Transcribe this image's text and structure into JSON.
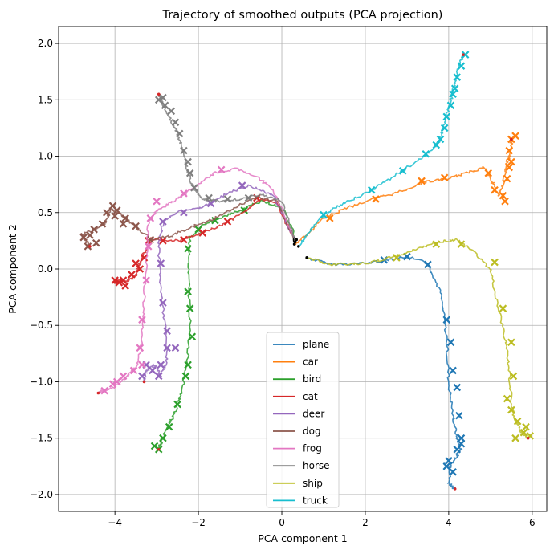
{
  "chart_data": {
    "type": "line",
    "title": "Trajectory of smoothed outputs (PCA projection)",
    "xlabel": "PCA component 1",
    "ylabel": "PCA component 2",
    "xlim": [
      -5.35,
      6.35
    ],
    "ylim": [
      -2.15,
      2.15
    ],
    "xticks": [
      -4,
      -2,
      0,
      2,
      4,
      6
    ],
    "yticks": [
      -2.0,
      -1.5,
      -1.0,
      -0.5,
      0.0,
      0.5,
      1.0,
      1.5,
      2.0
    ],
    "xtick_labels": [
      "−4",
      "−2",
      "0",
      "2",
      "4",
      "6"
    ],
    "ytick_labels": [
      "−2.0",
      "−1.5",
      "−1.0",
      "−0.5",
      "0.0",
      "0.5",
      "1.0",
      "1.5",
      "2.0"
    ],
    "grid": true,
    "legend_position": "bottom-center",
    "markers": {
      "checkpoint": "x",
      "start": "dot",
      "end": "dot"
    },
    "series": [
      {
        "name": "plane",
        "color": "#1f77b4",
        "points": [
          [
            0.6,
            0.1
          ],
          [
            1.2,
            0.04
          ],
          [
            2.0,
            0.05
          ],
          [
            2.5,
            0.08
          ],
          [
            3.0,
            0.11
          ],
          [
            3.5,
            0.05
          ],
          [
            3.8,
            -0.2
          ],
          [
            3.95,
            -0.6
          ],
          [
            4.0,
            -1.0
          ],
          [
            4.1,
            -1.3
          ],
          [
            4.2,
            -1.5
          ],
          [
            4.3,
            -1.6
          ],
          [
            4.2,
            -1.65
          ],
          [
            4.05,
            -1.75
          ],
          [
            4.0,
            -1.9
          ],
          [
            4.15,
            -1.95
          ]
        ],
        "crosses": [
          [
            2.45,
            0.08
          ],
          [
            3.0,
            0.11
          ],
          [
            3.5,
            0.04
          ],
          [
            3.95,
            -0.45
          ],
          [
            4.05,
            -0.65
          ],
          [
            4.1,
            -0.9
          ],
          [
            4.2,
            -1.05
          ],
          [
            4.25,
            -1.3
          ],
          [
            4.3,
            -1.5
          ],
          [
            4.2,
            -1.6
          ],
          [
            4.3,
            -1.55
          ],
          [
            4.0,
            -1.7
          ],
          [
            4.1,
            -1.8
          ],
          [
            3.95,
            -1.75
          ]
        ]
      },
      {
        "name": "car",
        "color": "#ff7f0e",
        "points": [
          [
            0.3,
            0.22
          ],
          [
            0.6,
            0.3
          ],
          [
            1.0,
            0.45
          ],
          [
            1.6,
            0.55
          ],
          [
            2.2,
            0.62
          ],
          [
            2.8,
            0.68
          ],
          [
            3.4,
            0.77
          ],
          [
            4.0,
            0.8
          ],
          [
            4.5,
            0.86
          ],
          [
            4.85,
            0.9
          ],
          [
            5.0,
            0.8
          ],
          [
            5.2,
            0.65
          ],
          [
            5.3,
            0.75
          ],
          [
            5.4,
            0.95
          ],
          [
            5.5,
            1.05
          ],
          [
            5.5,
            1.15
          ]
        ],
        "crosses": [
          [
            1.15,
            0.45
          ],
          [
            2.25,
            0.62
          ],
          [
            3.35,
            0.78
          ],
          [
            3.9,
            0.81
          ],
          [
            4.95,
            0.85
          ],
          [
            5.1,
            0.7
          ],
          [
            5.3,
            0.65
          ],
          [
            5.4,
            0.8
          ],
          [
            5.5,
            0.95
          ],
          [
            5.45,
            1.05
          ],
          [
            5.5,
            1.15
          ],
          [
            5.6,
            1.18
          ],
          [
            5.45,
            0.9
          ],
          [
            5.35,
            0.6
          ]
        ]
      },
      {
        "name": "bird",
        "color": "#2ca02c",
        "points": [
          [
            0.35,
            0.26
          ],
          [
            0.0,
            0.55
          ],
          [
            -0.5,
            0.6
          ],
          [
            -1.0,
            0.52
          ],
          [
            -1.5,
            0.45
          ],
          [
            -1.9,
            0.38
          ],
          [
            -2.2,
            0.28
          ],
          [
            -2.25,
            0.0
          ],
          [
            -2.2,
            -0.4
          ],
          [
            -2.25,
            -0.8
          ],
          [
            -2.4,
            -1.1
          ],
          [
            -2.6,
            -1.3
          ],
          [
            -2.8,
            -1.45
          ],
          [
            -2.9,
            -1.55
          ],
          [
            -2.95,
            -1.6
          ]
        ],
        "crosses": [
          [
            -0.9,
            0.52
          ],
          [
            -1.6,
            0.43
          ],
          [
            -2.0,
            0.35
          ],
          [
            -2.25,
            0.18
          ],
          [
            -2.25,
            -0.2
          ],
          [
            -2.2,
            -0.35
          ],
          [
            -2.15,
            -0.6
          ],
          [
            -2.25,
            -0.85
          ],
          [
            -2.3,
            -0.95
          ],
          [
            -2.5,
            -1.2
          ],
          [
            -2.7,
            -1.4
          ],
          [
            -2.85,
            -1.5
          ],
          [
            -3.05,
            -1.57
          ],
          [
            -2.95,
            -1.6
          ]
        ]
      },
      {
        "name": "cat",
        "color": "#d62728",
        "points": [
          [
            0.3,
            0.25
          ],
          [
            -0.1,
            0.58
          ],
          [
            -0.5,
            0.62
          ],
          [
            -1.0,
            0.48
          ],
          [
            -1.5,
            0.38
          ],
          [
            -2.0,
            0.3
          ],
          [
            -2.5,
            0.25
          ],
          [
            -3.1,
            0.26
          ],
          [
            -3.3,
            0.15
          ],
          [
            -3.4,
            0.05
          ],
          [
            -3.5,
            -0.05
          ],
          [
            -3.65,
            -0.1
          ],
          [
            -3.85,
            -0.1
          ],
          [
            -4.0,
            -0.12
          ]
        ],
        "crosses": [
          [
            -0.6,
            0.63
          ],
          [
            -1.3,
            0.42
          ],
          [
            -1.9,
            0.32
          ],
          [
            -2.35,
            0.26
          ],
          [
            -2.85,
            0.25
          ],
          [
            -3.2,
            0.25
          ],
          [
            -3.3,
            0.1
          ],
          [
            -3.4,
            0.0
          ],
          [
            -3.6,
            -0.05
          ],
          [
            -3.8,
            -0.1
          ],
          [
            -3.9,
            -0.12
          ],
          [
            -4.0,
            -0.1
          ],
          [
            -3.75,
            -0.15
          ],
          [
            -3.5,
            0.05
          ]
        ]
      },
      {
        "name": "deer",
        "color": "#9467bd",
        "points": [
          [
            0.3,
            0.26
          ],
          [
            -0.2,
            0.65
          ],
          [
            -0.8,
            0.74
          ],
          [
            -1.4,
            0.65
          ],
          [
            -1.9,
            0.55
          ],
          [
            -2.5,
            0.5
          ],
          [
            -2.85,
            0.42
          ],
          [
            -2.95,
            0.2
          ],
          [
            -2.9,
            -0.2
          ],
          [
            -2.8,
            -0.5
          ],
          [
            -2.75,
            -0.8
          ],
          [
            -2.9,
            -0.95
          ],
          [
            -3.05,
            -0.85
          ],
          [
            -3.25,
            -0.9
          ],
          [
            -3.3,
            -1.0
          ]
        ],
        "crosses": [
          [
            -0.95,
            0.74
          ],
          [
            -1.7,
            0.58
          ],
          [
            -2.35,
            0.5
          ],
          [
            -2.85,
            0.42
          ],
          [
            -2.9,
            0.05
          ],
          [
            -2.85,
            -0.3
          ],
          [
            -2.75,
            -0.55
          ],
          [
            -2.75,
            -0.7
          ],
          [
            -2.55,
            -0.7
          ],
          [
            -2.95,
            -0.95
          ],
          [
            -3.1,
            -0.9
          ],
          [
            -3.25,
            -0.85
          ],
          [
            -3.35,
            -0.95
          ],
          [
            -2.9,
            -0.85
          ]
        ]
      },
      {
        "name": "dog",
        "color": "#8c564b",
        "points": [
          [
            0.3,
            0.26
          ],
          [
            -0.1,
            0.6
          ],
          [
            -0.6,
            0.64
          ],
          [
            -1.1,
            0.55
          ],
          [
            -1.6,
            0.45
          ],
          [
            -2.1,
            0.38
          ],
          [
            -2.6,
            0.3
          ],
          [
            -3.1,
            0.26
          ],
          [
            -3.5,
            0.37
          ],
          [
            -3.9,
            0.5
          ],
          [
            -4.1,
            0.53
          ],
          [
            -4.25,
            0.4
          ],
          [
            -4.5,
            0.35
          ],
          [
            -4.8,
            0.3
          ],
          [
            -4.6,
            0.2
          ]
        ],
        "crosses": [
          [
            -3.15,
            0.26
          ],
          [
            -3.5,
            0.38
          ],
          [
            -3.75,
            0.45
          ],
          [
            -3.95,
            0.52
          ],
          [
            -4.05,
            0.56
          ],
          [
            -4.2,
            0.5
          ],
          [
            -4.3,
            0.4
          ],
          [
            -4.5,
            0.35
          ],
          [
            -4.6,
            0.3
          ],
          [
            -4.75,
            0.28
          ],
          [
            -4.65,
            0.2
          ],
          [
            -4.45,
            0.23
          ],
          [
            -3.8,
            0.4
          ],
          [
            -4.0,
            0.47
          ]
        ]
      },
      {
        "name": "frog",
        "color": "#e377c2",
        "points": [
          [
            0.3,
            0.27
          ],
          [
            -0.2,
            0.7
          ],
          [
            -0.6,
            0.82
          ],
          [
            -1.1,
            0.89
          ],
          [
            -1.6,
            0.85
          ],
          [
            -2.1,
            0.72
          ],
          [
            -2.6,
            0.6
          ],
          [
            -3.0,
            0.52
          ],
          [
            -3.2,
            0.4
          ],
          [
            -3.25,
            0.1
          ],
          [
            -3.3,
            -0.3
          ],
          [
            -3.35,
            -0.6
          ],
          [
            -3.45,
            -0.85
          ],
          [
            -3.7,
            -0.95
          ],
          [
            -4.0,
            -1.05
          ],
          [
            -4.3,
            -1.08
          ],
          [
            -4.4,
            -1.1
          ]
        ],
        "crosses": [
          [
            -1.45,
            0.88
          ],
          [
            -2.35,
            0.67
          ],
          [
            -3.0,
            0.6
          ],
          [
            -3.15,
            0.45
          ],
          [
            -3.2,
            0.2
          ],
          [
            -3.25,
            -0.1
          ],
          [
            -3.35,
            -0.45
          ],
          [
            -3.4,
            -0.7
          ],
          [
            -3.35,
            -0.85
          ],
          [
            -3.55,
            -0.9
          ],
          [
            -3.8,
            -0.95
          ],
          [
            -4.05,
            -1.02
          ],
          [
            -4.25,
            -1.08
          ],
          [
            -3.95,
            -1.0
          ]
        ]
      },
      {
        "name": "horse",
        "color": "#7f7f7f",
        "points": [
          [
            0.32,
            0.24
          ],
          [
            0.0,
            0.6
          ],
          [
            -0.5,
            0.66
          ],
          [
            -1.0,
            0.62
          ],
          [
            -1.5,
            0.6
          ],
          [
            -1.9,
            0.62
          ],
          [
            -2.1,
            0.7
          ],
          [
            -2.25,
            0.85
          ],
          [
            -2.35,
            1.05
          ],
          [
            -2.5,
            1.2
          ],
          [
            -2.7,
            1.35
          ],
          [
            -2.85,
            1.45
          ],
          [
            -2.95,
            1.55
          ]
        ],
        "crosses": [
          [
            -0.8,
            0.63
          ],
          [
            -1.3,
            0.62
          ],
          [
            -1.75,
            0.63
          ],
          [
            -2.1,
            0.72
          ],
          [
            -2.2,
            0.85
          ],
          [
            -2.25,
            0.95
          ],
          [
            -2.35,
            1.05
          ],
          [
            -2.45,
            1.2
          ],
          [
            -2.55,
            1.3
          ],
          [
            -2.65,
            1.4
          ],
          [
            -2.8,
            1.45
          ],
          [
            -2.85,
            1.52
          ],
          [
            -2.95,
            1.5
          ]
        ]
      },
      {
        "name": "ship",
        "color": "#bcbd22",
        "points": [
          [
            0.6,
            0.1
          ],
          [
            1.2,
            0.04
          ],
          [
            2.0,
            0.05
          ],
          [
            2.6,
            0.1
          ],
          [
            3.2,
            0.17
          ],
          [
            3.8,
            0.24
          ],
          [
            4.2,
            0.26
          ],
          [
            4.6,
            0.15
          ],
          [
            5.0,
            0.0
          ],
          [
            5.15,
            -0.3
          ],
          [
            5.35,
            -0.6
          ],
          [
            5.45,
            -0.9
          ],
          [
            5.5,
            -1.2
          ],
          [
            5.6,
            -1.35
          ],
          [
            5.75,
            -1.45
          ],
          [
            5.9,
            -1.5
          ]
        ],
        "crosses": [
          [
            2.75,
            0.1
          ],
          [
            3.7,
            0.22
          ],
          [
            4.3,
            0.22
          ],
          [
            5.1,
            0.06
          ],
          [
            5.3,
            -0.35
          ],
          [
            5.5,
            -0.65
          ],
          [
            5.55,
            -0.95
          ],
          [
            5.4,
            -1.15
          ],
          [
            5.5,
            -1.25
          ],
          [
            5.65,
            -1.35
          ],
          [
            5.8,
            -1.45
          ],
          [
            5.85,
            -1.4
          ],
          [
            5.6,
            -1.5
          ],
          [
            5.95,
            -1.48
          ]
        ]
      },
      {
        "name": "truck",
        "color": "#17becf",
        "points": [
          [
            0.4,
            0.2
          ],
          [
            0.7,
            0.35
          ],
          [
            1.0,
            0.48
          ],
          [
            1.5,
            0.58
          ],
          [
            2.0,
            0.67
          ],
          [
            2.6,
            0.8
          ],
          [
            3.2,
            0.95
          ],
          [
            3.6,
            1.05
          ],
          [
            3.8,
            1.15
          ],
          [
            3.9,
            1.3
          ],
          [
            4.05,
            1.5
          ],
          [
            4.15,
            1.65
          ],
          [
            4.25,
            1.8
          ],
          [
            4.35,
            1.9
          ]
        ],
        "crosses": [
          [
            1.0,
            0.48
          ],
          [
            2.15,
            0.7
          ],
          [
            2.9,
            0.87
          ],
          [
            3.45,
            1.02
          ],
          [
            3.7,
            1.1
          ],
          [
            3.8,
            1.15
          ],
          [
            3.9,
            1.25
          ],
          [
            3.95,
            1.35
          ],
          [
            4.05,
            1.45
          ],
          [
            4.1,
            1.55
          ],
          [
            4.15,
            1.6
          ],
          [
            4.2,
            1.7
          ],
          [
            4.3,
            1.8
          ],
          [
            4.4,
            1.9
          ]
        ]
      }
    ]
  }
}
